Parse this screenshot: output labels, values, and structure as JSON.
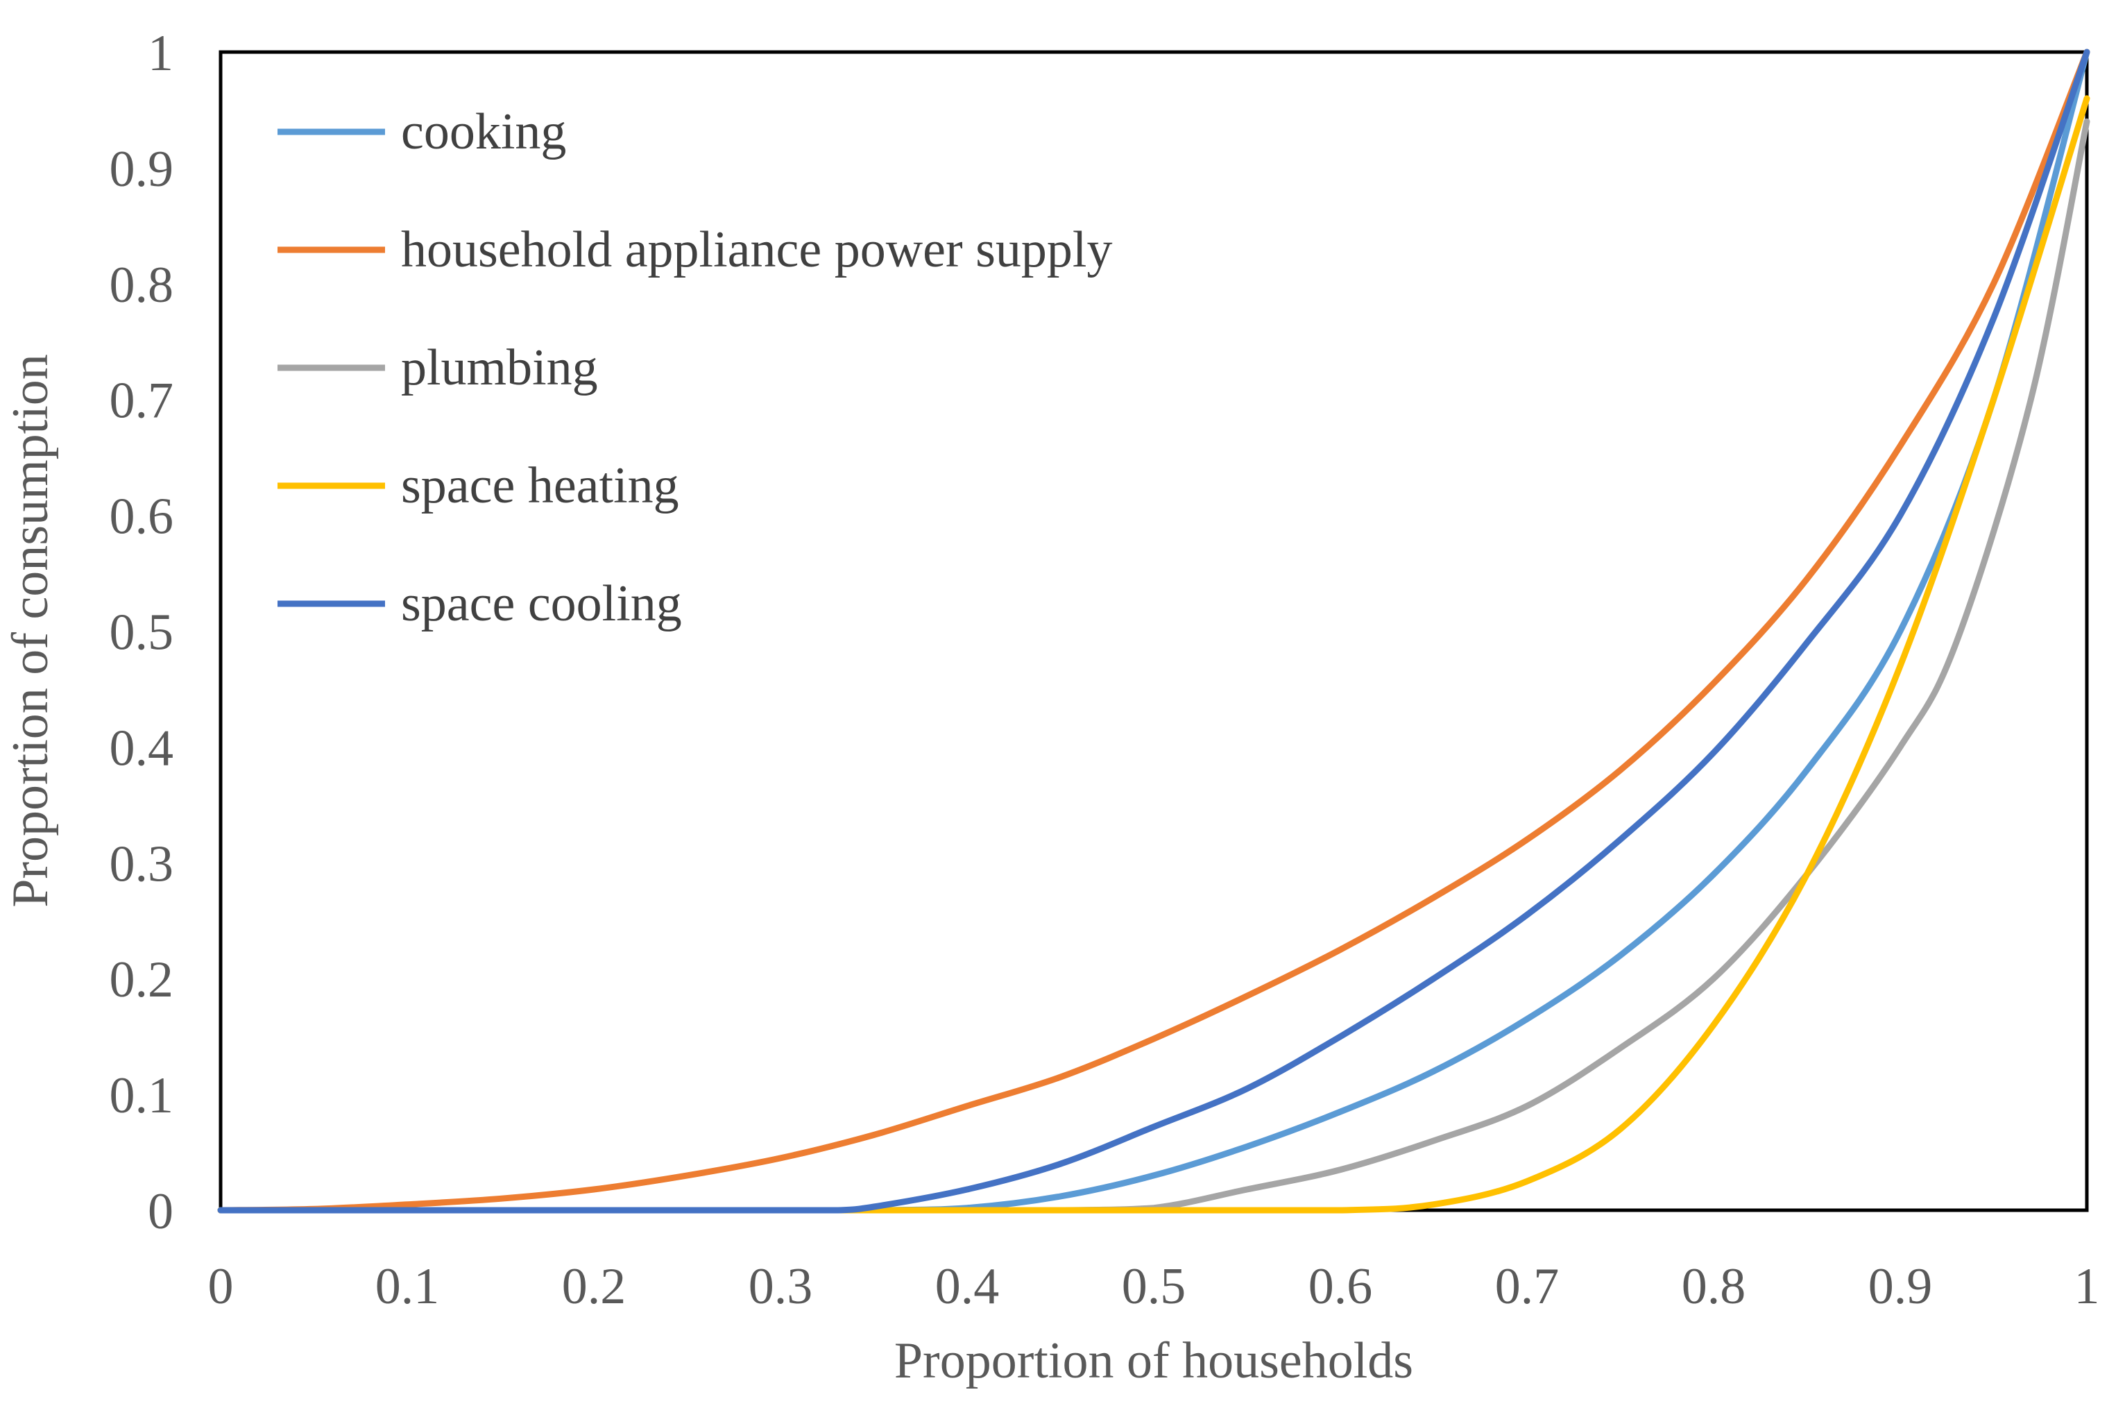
{
  "chart_data": {
    "type": "line",
    "title": "",
    "xlabel": "Proportion of households",
    "ylabel": "Proportion of consumption",
    "xlim": [
      0,
      1
    ],
    "ylim": [
      0,
      1
    ],
    "grid": false,
    "legend_position": "top-left",
    "x_ticks": [
      "0",
      "0.1",
      "0.2",
      "0.3",
      "0.4",
      "0.5",
      "0.6",
      "0.7",
      "0.8",
      "0.9",
      "1"
    ],
    "y_ticks": [
      "0",
      "0.1",
      "0.2",
      "0.3",
      "0.4",
      "0.5",
      "0.6",
      "0.7",
      "0.8",
      "0.9",
      "1"
    ],
    "series": [
      {
        "name": "cooking",
        "color": "#5B9BD5",
        "points": [
          [
            0,
            0
          ],
          [
            0.1,
            0
          ],
          [
            0.2,
            0
          ],
          [
            0.3,
            0
          ],
          [
            0.35,
            0
          ],
          [
            0.4,
            0.002
          ],
          [
            0.45,
            0.012
          ],
          [
            0.5,
            0.03
          ],
          [
            0.55,
            0.055
          ],
          [
            0.6,
            0.085
          ],
          [
            0.65,
            0.12
          ],
          [
            0.7,
            0.165
          ],
          [
            0.75,
            0.22
          ],
          [
            0.8,
            0.29
          ],
          [
            0.85,
            0.38
          ],
          [
            0.9,
            0.5
          ],
          [
            0.95,
            0.7
          ],
          [
            1,
            1
          ]
        ]
      },
      {
        "name": "household appliance power supply",
        "color": "#ED7D31",
        "points": [
          [
            0,
            0
          ],
          [
            0.05,
            0.001
          ],
          [
            0.1,
            0.005
          ],
          [
            0.15,
            0.01
          ],
          [
            0.2,
            0.018
          ],
          [
            0.25,
            0.03
          ],
          [
            0.3,
            0.045
          ],
          [
            0.35,
            0.065
          ],
          [
            0.4,
            0.09
          ],
          [
            0.45,
            0.115
          ],
          [
            0.5,
            0.148
          ],
          [
            0.55,
            0.185
          ],
          [
            0.6,
            0.225
          ],
          [
            0.65,
            0.27
          ],
          [
            0.7,
            0.32
          ],
          [
            0.75,
            0.38
          ],
          [
            0.8,
            0.455
          ],
          [
            0.85,
            0.545
          ],
          [
            0.9,
            0.66
          ],
          [
            0.95,
            0.8
          ],
          [
            1,
            1
          ]
        ]
      },
      {
        "name": "plumbing",
        "color": "#A5A5A5",
        "points": [
          [
            0,
            0
          ],
          [
            0.1,
            0
          ],
          [
            0.2,
            0
          ],
          [
            0.3,
            0
          ],
          [
            0.4,
            0
          ],
          [
            0.45,
            0
          ],
          [
            0.5,
            0.002
          ],
          [
            0.55,
            0.018
          ],
          [
            0.6,
            0.035
          ],
          [
            0.65,
            0.06
          ],
          [
            0.7,
            0.09
          ],
          [
            0.75,
            0.14
          ],
          [
            0.8,
            0.2
          ],
          [
            0.85,
            0.29
          ],
          [
            0.9,
            0.4
          ],
          [
            0.93,
            0.49
          ],
          [
            0.97,
            0.7
          ],
          [
            1,
            0.94
          ]
        ]
      },
      {
        "name": "space heating",
        "color": "#FFC000",
        "points": [
          [
            0,
            0
          ],
          [
            0.1,
            0
          ],
          [
            0.2,
            0
          ],
          [
            0.3,
            0
          ],
          [
            0.4,
            0
          ],
          [
            0.5,
            0
          ],
          [
            0.6,
            0
          ],
          [
            0.65,
            0.005
          ],
          [
            0.7,
            0.025
          ],
          [
            0.75,
            0.07
          ],
          [
            0.8,
            0.16
          ],
          [
            0.85,
            0.29
          ],
          [
            0.9,
            0.47
          ],
          [
            0.95,
            0.7
          ],
          [
            1,
            0.96
          ]
        ]
      },
      {
        "name": "space cooling",
        "color": "#4472C4",
        "points": [
          [
            0,
            0
          ],
          [
            0.1,
            0
          ],
          [
            0.2,
            0
          ],
          [
            0.3,
            0
          ],
          [
            0.33,
            0
          ],
          [
            0.35,
            0.003
          ],
          [
            0.4,
            0.018
          ],
          [
            0.45,
            0.04
          ],
          [
            0.5,
            0.072
          ],
          [
            0.55,
            0.105
          ],
          [
            0.6,
            0.15
          ],
          [
            0.65,
            0.2
          ],
          [
            0.7,
            0.255
          ],
          [
            0.75,
            0.32
          ],
          [
            0.8,
            0.395
          ],
          [
            0.85,
            0.49
          ],
          [
            0.9,
            0.6
          ],
          [
            0.95,
            0.77
          ],
          [
            1,
            1
          ]
        ]
      }
    ]
  }
}
